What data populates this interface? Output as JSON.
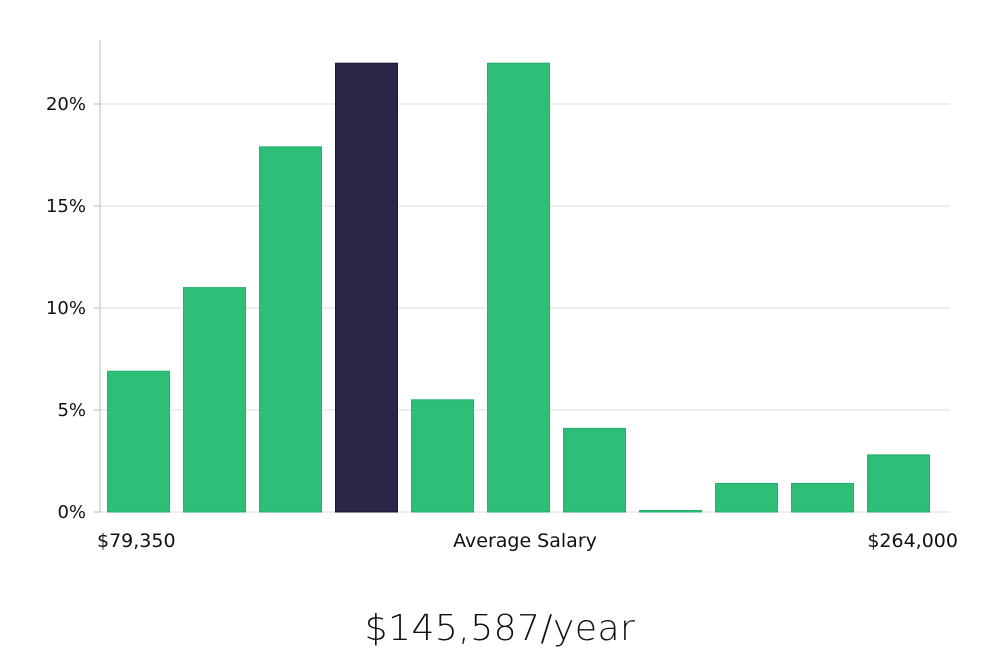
{
  "chart_data": {
    "type": "bar",
    "x_min_label": "$79,350",
    "x_max_label": "$264,000",
    "xlabel": "Average Salary",
    "values": [
      6.9,
      11.0,
      17.9,
      22.0,
      5.5,
      22.0,
      4.1,
      0.0,
      1.4,
      1.4,
      2.8
    ],
    "highlight_index": 3,
    "ylim": [
      0,
      23
    ],
    "yticks": [
      0,
      5,
      10,
      15,
      20
    ],
    "ytick_labels": [
      "0%",
      "5%",
      "10%",
      "15%",
      "20%"
    ],
    "grid": true,
    "colors": {
      "bar": "#2dbe78",
      "highlight": "#2a2647",
      "grid": "#dddddd",
      "axis": "#bbbbbb"
    }
  },
  "salary_text": "$145,587/year"
}
